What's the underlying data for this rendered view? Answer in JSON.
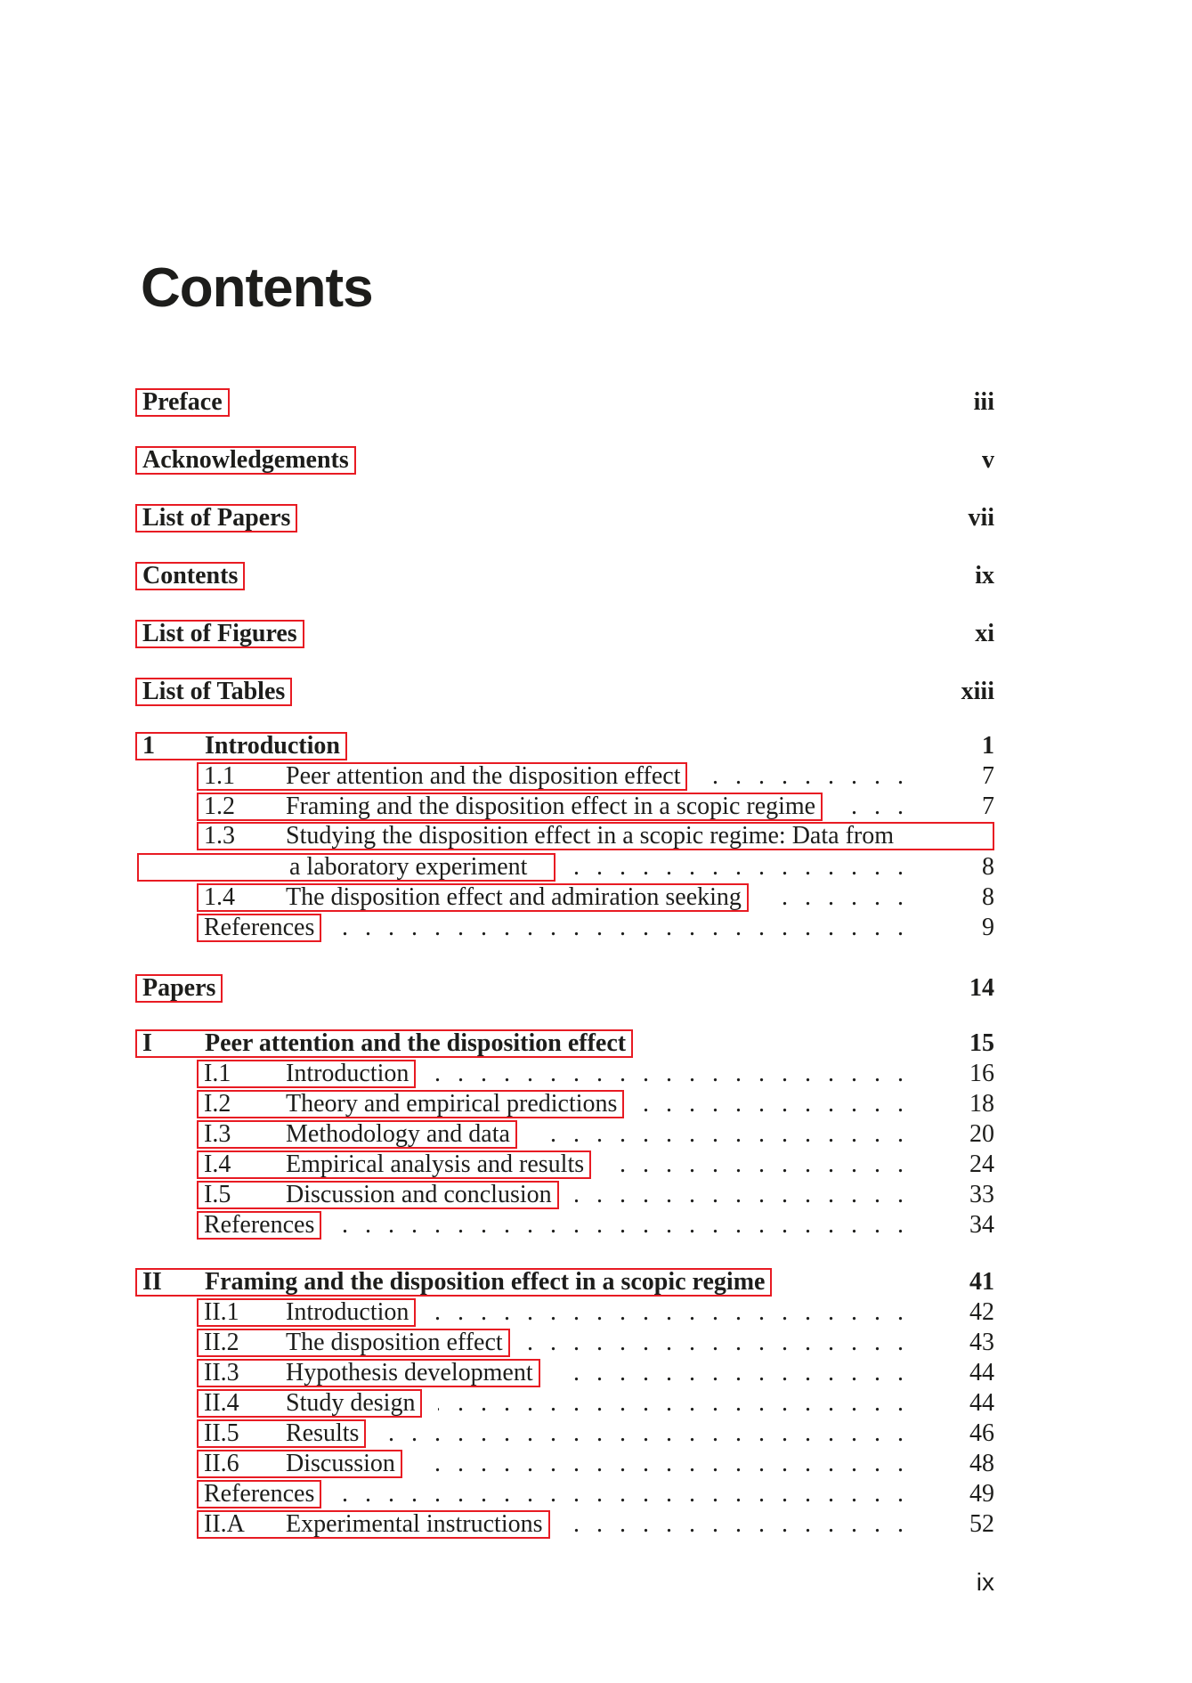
{
  "page": {
    "title": "Contents",
    "footer_page_number": "ix"
  },
  "colors": {
    "link_border": "#e81b23",
    "text": "#1d1d1b"
  },
  "front_matter": [
    {
      "label": "Preface",
      "page": "iii"
    },
    {
      "label": "Acknowledgements",
      "page": "v"
    },
    {
      "label": "List of Papers",
      "page": "vii"
    },
    {
      "label": "Contents",
      "page": "ix"
    },
    {
      "label": "List of Figures",
      "page": "xi"
    },
    {
      "label": "List of Tables",
      "page": "xiii"
    }
  ],
  "chapter1": {
    "number": "1",
    "title": "Introduction",
    "page": "1",
    "items": [
      {
        "number": "1.1",
        "title": "Peer attention and the disposition effect",
        "page": "7"
      },
      {
        "number": "1.2",
        "title": "Framing and the disposition effect in a scopic regime",
        "page": "7"
      },
      {
        "number": "1.3",
        "line1": "Studying the disposition effect in a scopic regime: Data from",
        "line2": "a laboratory experiment",
        "page": "8"
      },
      {
        "number": "1.4",
        "title": "The disposition effect and admiration seeking",
        "page": "8"
      },
      {
        "title": "References",
        "page": "9"
      }
    ]
  },
  "papers_part": {
    "label": "Papers",
    "page": "14"
  },
  "paper1": {
    "number": "I",
    "title": "Peer attention and the disposition effect",
    "page": "15",
    "items": [
      {
        "number": "I.1",
        "title": "Introduction",
        "page": "16"
      },
      {
        "number": "I.2",
        "title": "Theory and empirical predictions",
        "page": "18"
      },
      {
        "number": "I.3",
        "title": "Methodology and data",
        "page": "20"
      },
      {
        "number": "I.4",
        "title": "Empirical analysis and results",
        "page": "24"
      },
      {
        "number": "I.5",
        "title": "Discussion and conclusion",
        "page": "33"
      },
      {
        "title": "References",
        "page": "34"
      }
    ]
  },
  "paper2": {
    "number": "II",
    "title": "Framing and the disposition effect in a scopic regime",
    "page": "41",
    "items": [
      {
        "number": "II.1",
        "title": "Introduction",
        "page": "42"
      },
      {
        "number": "II.2",
        "title": "The disposition effect",
        "page": "43"
      },
      {
        "number": "II.3",
        "title": "Hypothesis development",
        "page": "44"
      },
      {
        "number": "II.4",
        "title": "Study design",
        "page": "44"
      },
      {
        "number": "II.5",
        "title": "Results",
        "page": "46"
      },
      {
        "number": "II.6",
        "title": "Discussion",
        "page": "48"
      },
      {
        "title": "References",
        "page": "49"
      },
      {
        "number": "II.A",
        "title": "Experimental instructions",
        "page": "52"
      }
    ]
  }
}
